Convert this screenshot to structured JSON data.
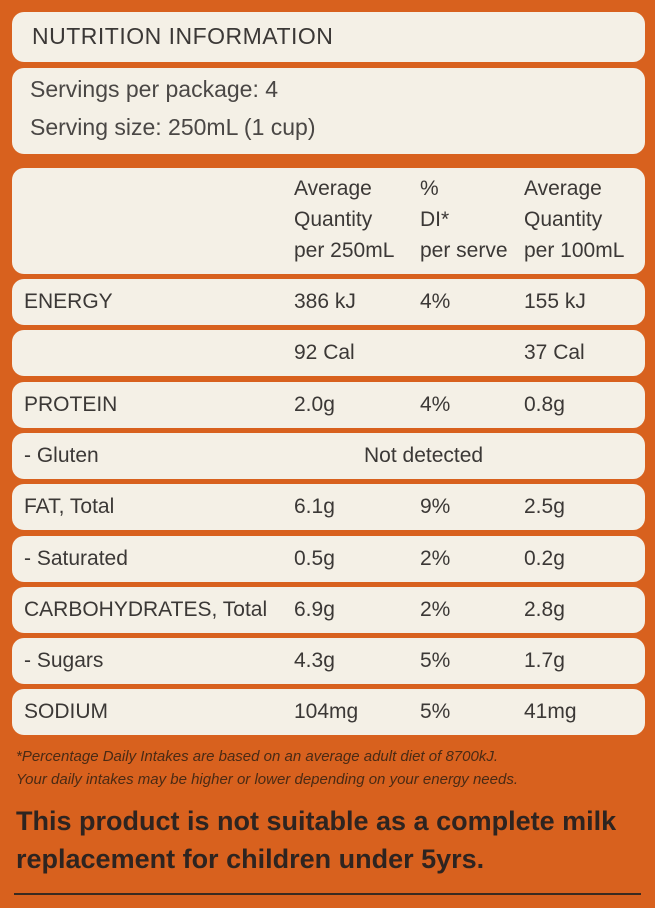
{
  "title": "NUTRITION INFORMATION",
  "servings": [
    "Servings per package: 4",
    "Serving size: 250mL (1 cup)"
  ],
  "table": {
    "header": [
      [
        "Average",
        "Quantity",
        "per 250mL"
      ],
      [
        "%",
        "DI*",
        "per serve"
      ],
      [
        "Average",
        "Quantity",
        "per 100mL"
      ]
    ],
    "rows": [
      [
        "ENERGY",
        "386 kJ",
        "4%",
        "155 kJ"
      ],
      [
        null,
        "92 Cal",
        null,
        "37 Cal"
      ],
      [
        "PROTEIN",
        "2.0g",
        "4%",
        "0.8g"
      ],
      [
        "- Gluten",
        "Not detected"
      ],
      [
        "FAT, Total",
        "6.1g",
        "9%",
        "2.5g"
      ],
      [
        "- Saturated",
        "0.5g",
        "2%",
        "0.2g"
      ],
      [
        "CARBOHYDRATES, Total",
        "6.9g",
        "2%",
        "2.8g"
      ],
      [
        "- Sugars",
        "4.3g",
        "5%",
        "1.7g"
      ],
      [
        "SODIUM",
        "104mg",
        "5%",
        "41mg"
      ]
    ]
  },
  "footnote": [
    "*Percentage Daily Intakes are based on an average adult diet of 8700kJ.",
    "Your daily intakes may be higher or lower depending on your energy needs."
  ],
  "warning": [
    "This product is not suitable as a complete milk",
    "replacement for children under 5yrs."
  ]
}
